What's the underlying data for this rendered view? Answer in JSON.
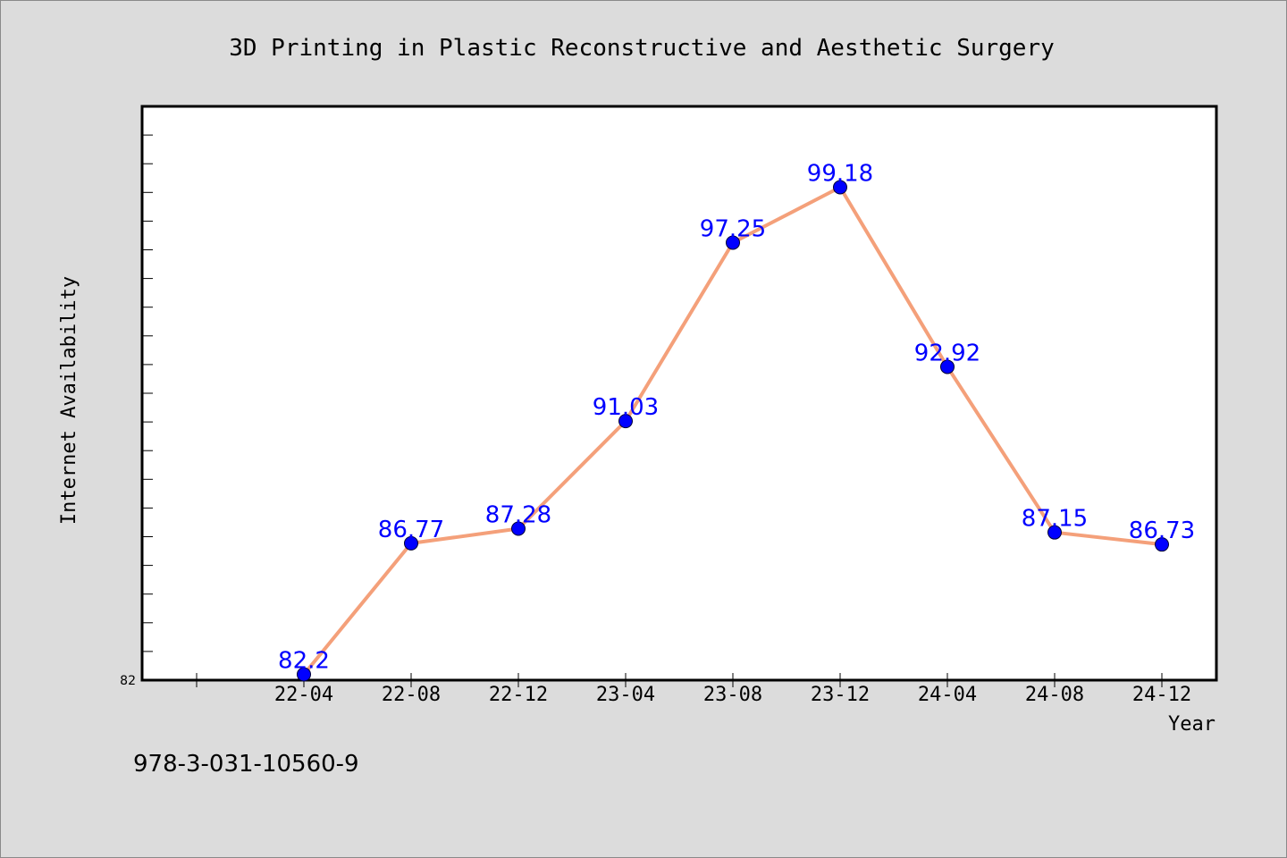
{
  "chart_data": {
    "type": "line",
    "title": "3D Printing in Plastic Reconstructive and Aesthetic Surgery",
    "xlabel": "Year",
    "ylabel": "Internet Availability",
    "categories": [
      "22-04",
      "22-08",
      "22-12",
      "23-04",
      "23-08",
      "23-12",
      "24-04",
      "24-08",
      "24-12"
    ],
    "series": [
      {
        "values": [
          82.2,
          86.77,
          87.28,
          91.03,
          97.25,
          99.18,
          92.92,
          87.15,
          86.73
        ],
        "data_labels": [
          "82.2",
          "86.77",
          "87.28",
          "91.03",
          "97.25",
          "99.18",
          "92.92",
          "87.15",
          "86.73"
        ]
      }
    ],
    "ylim": [
      82,
      102
    ],
    "y_tick_labels": [
      "82"
    ],
    "grid": false,
    "line_color": "#f4a07a",
    "marker_color": "#0000ff",
    "label_color": "#0000ff"
  },
  "footer": {
    "isbn": "978-3-031-10560-9"
  }
}
